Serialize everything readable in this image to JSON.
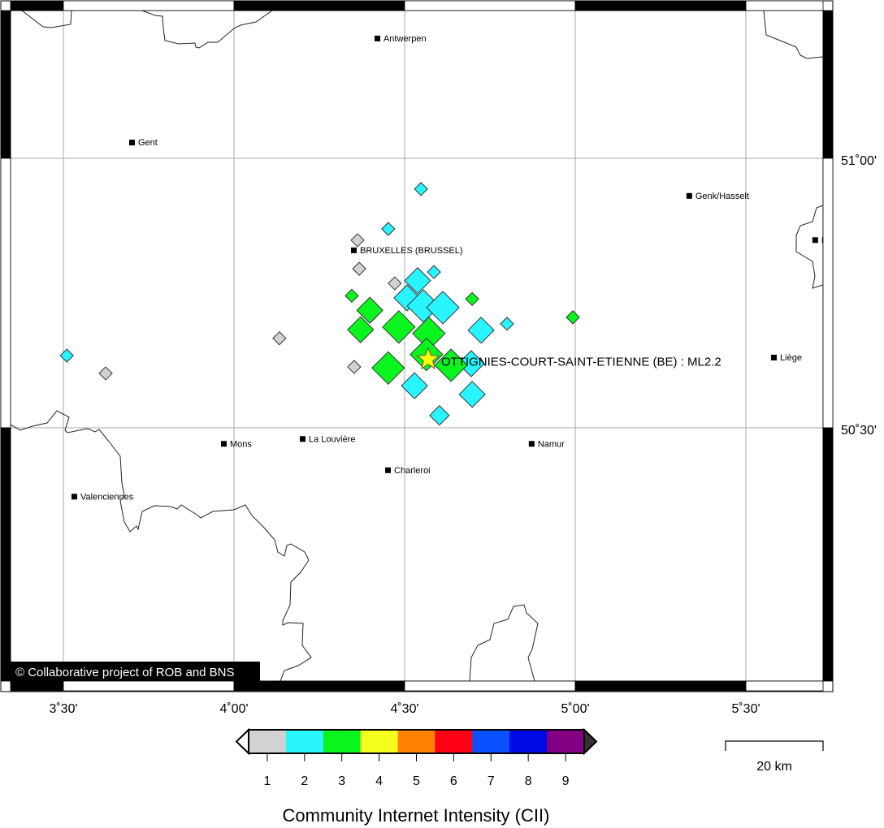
{
  "map": {
    "projection_extent": {
      "lon": [
        3.345,
        5.726
      ],
      "lat": [
        50.283,
        51.277
      ]
    },
    "grid_lines": true,
    "lon_ticks": [
      {
        "value": 3.5,
        "label": "3˚30'"
      },
      {
        "value": 4.0,
        "label": "4˚00'"
      },
      {
        "value": 4.5,
        "label": "4˚30'"
      },
      {
        "value": 5.0,
        "label": "5˚00'"
      },
      {
        "value": 5.5,
        "label": "5˚30'"
      }
    ],
    "lat_ticks": [
      {
        "value": 51.0,
        "label": "51˚00'"
      },
      {
        "value": 50.5,
        "label": "50˚30'"
      }
    ],
    "cities": [
      {
        "name": "Antwerpen",
        "lon": 4.419,
        "lat": 51.223
      },
      {
        "name": "Gent",
        "lon": 3.7,
        "lat": 51.03
      },
      {
        "name": "Genk/Hasselt",
        "lon": 5.333,
        "lat": 50.931
      },
      {
        "name": "BRUXELLES (BRUSSEL)",
        "lon": 4.35,
        "lat": 50.83
      },
      {
        "name": "Maastricht",
        "lon": 5.702,
        "lat": 50.849
      },
      {
        "name": "Liège",
        "lon": 5.581,
        "lat": 50.631
      },
      {
        "name": "Mons",
        "lon": 3.969,
        "lat": 50.471
      },
      {
        "name": "La Louvière",
        "lon": 4.2,
        "lat": 50.48
      },
      {
        "name": "Namur",
        "lon": 4.871,
        "lat": 50.471
      },
      {
        "name": "Charleroi",
        "lon": 4.45,
        "lat": 50.422
      },
      {
        "name": "Valenciennes",
        "lon": 3.531,
        "lat": 50.373
      }
    ],
    "reports": [
      {
        "lon": 4.548,
        "lat": 50.943,
        "cii": 2,
        "size": "small"
      },
      {
        "lon": 4.452,
        "lat": 50.869,
        "cii": 2,
        "size": "small"
      },
      {
        "lon": 4.362,
        "lat": 50.848,
        "cii": 1,
        "size": "small"
      },
      {
        "lon": 4.367,
        "lat": 50.795,
        "cii": 1,
        "size": "small"
      },
      {
        "lon": 4.586,
        "lat": 50.789,
        "cii": 2,
        "size": "small"
      },
      {
        "lon": 4.538,
        "lat": 50.773,
        "cii": 2,
        "size": "medium"
      },
      {
        "lon": 4.471,
        "lat": 50.768,
        "cii": 1,
        "size": "small"
      },
      {
        "lon": 4.345,
        "lat": 50.745,
        "cii": 3,
        "size": "small"
      },
      {
        "lon": 4.507,
        "lat": 50.741,
        "cii": 2,
        "size": "medium"
      },
      {
        "lon": 4.698,
        "lat": 50.739,
        "cii": 3,
        "size": "small"
      },
      {
        "lon": 4.398,
        "lat": 50.718,
        "cii": 3,
        "size": "medium"
      },
      {
        "lon": 4.555,
        "lat": 50.726,
        "cii": 2,
        "size": "large"
      },
      {
        "lon": 4.612,
        "lat": 50.723,
        "cii": 2,
        "size": "large"
      },
      {
        "lon": 4.371,
        "lat": 50.682,
        "cii": 3,
        "size": "medium"
      },
      {
        "lon": 4.483,
        "lat": 50.687,
        "cii": 3,
        "size": "large"
      },
      {
        "lon": 4.724,
        "lat": 50.681,
        "cii": 2,
        "size": "medium"
      },
      {
        "lon": 4.8,
        "lat": 50.693,
        "cii": 2,
        "size": "small"
      },
      {
        "lon": 4.993,
        "lat": 50.705,
        "cii": 3,
        "size": "small"
      },
      {
        "lon": 4.695,
        "lat": 50.619,
        "cii": 2,
        "size": "medium"
      },
      {
        "lon": 4.571,
        "lat": 50.675,
        "cii": 3,
        "size": "large"
      },
      {
        "lon": 4.564,
        "lat": 50.636,
        "cii": 3,
        "size": "large"
      },
      {
        "lon": 4.636,
        "lat": 50.616,
        "cii": 3,
        "size": "large"
      },
      {
        "lon": 4.352,
        "lat": 50.613,
        "cii": 1,
        "size": "small"
      },
      {
        "lon": 4.452,
        "lat": 50.611,
        "cii": 3,
        "size": "large"
      },
      {
        "lon": 4.529,
        "lat": 50.578,
        "cii": 2,
        "size": "medium"
      },
      {
        "lon": 4.698,
        "lat": 50.562,
        "cii": 2,
        "size": "medium"
      },
      {
        "lon": 4.602,
        "lat": 50.523,
        "cii": 2,
        "size": "small-medium"
      },
      {
        "lon": 4.133,
        "lat": 50.666,
        "cii": 1,
        "size": "small"
      },
      {
        "lon": 3.624,
        "lat": 50.601,
        "cii": 1,
        "size": "small"
      },
      {
        "lon": 3.51,
        "lat": 50.634,
        "cii": 2,
        "size": "small"
      }
    ],
    "epicenter": {
      "lon": 4.569,
      "lat": 50.627,
      "label": "OTTIGNIES-COURT-SAINT-ETIENNE (BE) : ML2.2",
      "color": "#ffff00"
    },
    "copyright": "© Collaborative project of ROB and BNS",
    "scale_bar": {
      "label": "20 km"
    }
  },
  "colorbar": {
    "title": "Community Internet Intensity (CII)",
    "levels": [
      {
        "value": "1",
        "color": "#d2d2d2"
      },
      {
        "value": "2",
        "color": "#28f5ff"
      },
      {
        "value": "3",
        "color": "#0af51e"
      },
      {
        "value": "4",
        "color": "#f5ff1e"
      },
      {
        "value": "5",
        "color": "#ff8200"
      },
      {
        "value": "6",
        "color": "#ff0014"
      },
      {
        "value": "7",
        "color": "#0a50ff"
      },
      {
        "value": "8",
        "color": "#000ae6"
      },
      {
        "value": "9",
        "color": "#820082"
      }
    ],
    "below_color": "#ffffff",
    "above_color": "#333333"
  }
}
